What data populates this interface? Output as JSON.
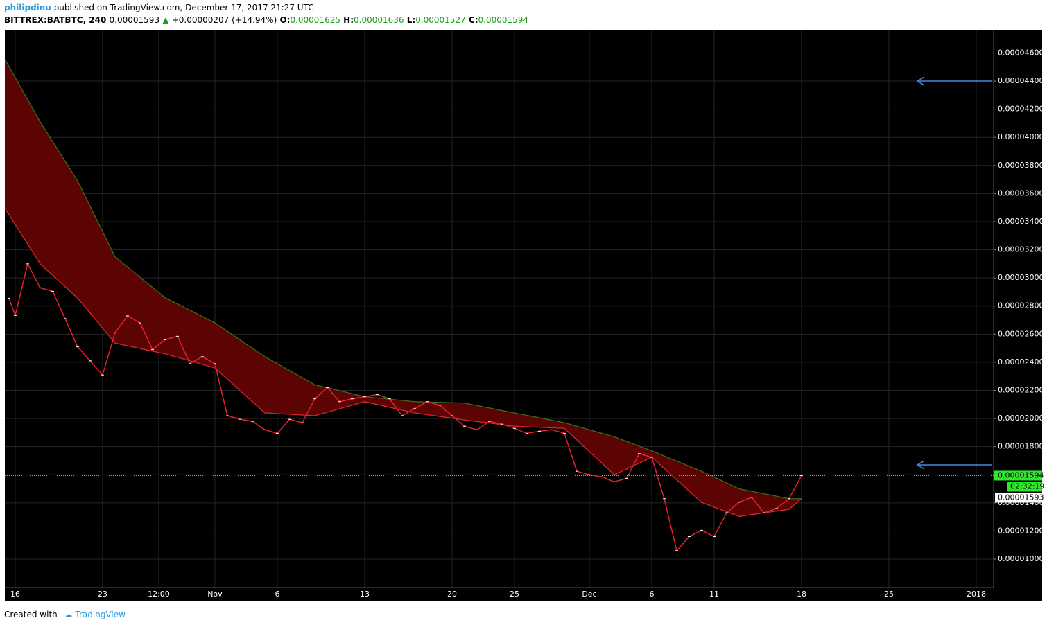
{
  "header": {
    "author": "philipdinu",
    "published": "published on TradingView.com, December 17, 2017 21:27 UTC",
    "symbol": "BITTREX:BATBTC, 240",
    "price": "0.00001593",
    "arrow": "▲",
    "change": "+0.00000207 (+14.94%)",
    "o_label": "O:",
    "o": "0.00001625",
    "h_label": "H:",
    "h": "0.00001636",
    "l_label": "L:",
    "l": "0.00001527",
    "c_label": "C:",
    "c": "0.00001594"
  },
  "footer": {
    "created": "Created with",
    "brand": "TradingView"
  },
  "chart_data": {
    "type": "line",
    "xlim": [
      -0.83,
      78.39
    ],
    "ylim": [
      7.98e-06,
      4.76e-05
    ],
    "xticks": [
      {
        "value": 0,
        "label": "16"
      },
      {
        "value": 7,
        "label": "23"
      },
      {
        "value": 11.5,
        "label": "12:00"
      },
      {
        "value": 16,
        "label": "Nov"
      },
      {
        "value": 21,
        "label": "6"
      },
      {
        "value": 28,
        "label": "13"
      },
      {
        "value": 35,
        "label": "20"
      },
      {
        "value": 40,
        "label": "25"
      },
      {
        "value": 46,
        "label": "Dec"
      },
      {
        "value": 51,
        "label": "6"
      },
      {
        "value": 56,
        "label": "11"
      },
      {
        "value": 63,
        "label": "18"
      },
      {
        "value": 70,
        "label": "25"
      },
      {
        "value": 77,
        "label": "2018"
      }
    ],
    "yticks": [
      {
        "value": 1e-05,
        "label": "0.00001000"
      },
      {
        "value": 1.2e-05,
        "label": "0.00001200"
      },
      {
        "value": 1.4e-05,
        "label": "0.00001400"
      },
      {
        "value": 1.6e-05,
        "label": "0.00001600"
      },
      {
        "value": 1.8e-05,
        "label": "0.00001800"
      },
      {
        "value": 2e-05,
        "label": "0.00002000"
      },
      {
        "value": 2.2e-05,
        "label": "0.00002200"
      },
      {
        "value": 2.4e-05,
        "label": "0.00002400"
      },
      {
        "value": 2.6e-05,
        "label": "0.00002600"
      },
      {
        "value": 2.8e-05,
        "label": "0.00002800"
      },
      {
        "value": 3e-05,
        "label": "0.00003000"
      },
      {
        "value": 3.2e-05,
        "label": "0.00003200"
      },
      {
        "value": 3.4e-05,
        "label": "0.00003400"
      },
      {
        "value": 3.6e-05,
        "label": "0.00003600"
      },
      {
        "value": 3.8e-05,
        "label": "0.00003800"
      },
      {
        "value": 4e-05,
        "label": "0.00004000"
      },
      {
        "value": 4.2e-05,
        "label": "0.00004200"
      },
      {
        "value": 4.4e-05,
        "label": "0.00004400"
      },
      {
        "value": 4.6e-05,
        "label": "0.00004600"
      }
    ],
    "grid": true,
    "band_color": "#5c0404",
    "series": [
      {
        "color": "#e8202c",
        "x": [
          -0.5,
          0,
          1,
          2,
          3,
          4,
          5,
          6,
          7,
          8,
          9,
          10,
          11,
          12,
          13,
          14,
          15,
          16,
          17,
          18,
          19,
          20,
          21,
          22,
          23,
          24,
          25,
          26,
          27,
          28,
          29,
          30,
          31,
          32,
          33,
          34,
          35,
          36,
          37,
          38,
          39,
          40,
          41,
          42,
          43,
          44,
          45,
          46,
          47,
          48,
          49,
          50,
          51,
          52,
          53,
          54,
          55,
          56,
          57,
          58,
          59,
          60,
          61,
          62,
          63
        ],
        "values": [
          2.856e-05,
          2.733e-05,
          3.1e-05,
          2.93e-05,
          2.905e-05,
          2.71e-05,
          2.51e-05,
          2.41e-05,
          2.31e-05,
          2.61e-05,
          2.73e-05,
          2.68e-05,
          2.49e-05,
          2.56e-05,
          2.585e-05,
          2.39e-05,
          2.44e-05,
          2.39e-05,
          2.02e-05,
          1.995e-05,
          1.98e-05,
          1.92e-05,
          1.895e-05,
          1.995e-05,
          1.97e-05,
          2.14e-05,
          2.22e-05,
          2.12e-05,
          2.14e-05,
          2.155e-05,
          2.17e-05,
          2.14e-05,
          2.02e-05,
          2.07e-05,
          2.12e-05,
          2.095e-05,
          2.02e-05,
          1.945e-05,
          1.92e-05,
          1.98e-05,
          1.96e-05,
          1.93e-05,
          1.895e-05,
          1.91e-05,
          1.92e-05,
          1.895e-05,
          1.625e-05,
          1.6e-05,
          1.585e-05,
          1.55e-05,
          1.575e-05,
          1.75e-05,
          1.725e-05,
          1.43e-05,
          1.06e-05,
          1.16e-05,
          1.205e-05,
          1.16e-05,
          1.33e-05,
          1.405e-05,
          1.44e-05,
          1.33e-05,
          1.36e-05,
          1.43e-05,
          1.594e-05
        ]
      },
      {
        "color": "#d8262a",
        "x": [
          -0.83,
          2,
          5,
          8,
          12,
          16,
          20,
          24,
          28,
          32,
          36,
          40,
          44,
          48,
          51,
          55,
          58,
          62,
          63
        ],
        "values": [
          3.497e-05,
          3.1e-05,
          2.856e-05,
          2.536e-05,
          2.46e-05,
          2.36e-05,
          2.04e-05,
          2.02e-05,
          2.12e-05,
          2.04e-05,
          1.99e-05,
          1.945e-05,
          1.93e-05,
          1.6e-05,
          1.725e-05,
          1.403e-05,
          1.304e-05,
          1.354e-05,
          1.43e-05
        ]
      },
      {
        "color": "#3d6b1a",
        "x": [
          -0.83,
          2,
          5,
          8,
          12,
          16,
          20,
          24,
          28,
          32,
          36,
          40,
          44,
          48,
          51,
          55,
          58,
          62,
          63
        ],
        "values": [
          4.556e-05,
          4.11e-05,
          3.69e-05,
          3.15e-05,
          2.86e-05,
          2.68e-05,
          2.44e-05,
          2.24e-05,
          2.155e-05,
          2.12e-05,
          2.11e-05,
          2.04e-05,
          1.97e-05,
          1.87e-05,
          1.77e-05,
          1.625e-05,
          1.5e-05,
          1.43e-05,
          1.43e-05
        ]
      }
    ],
    "last_price": 1.594e-05,
    "last_color": "#2ee62e",
    "price_labels": {
      "last": "0.00001594",
      "countdown": "02:32:19",
      "bid": "0.00001593"
    },
    "arrow_levels": [
      4.4e-05,
      1.67e-05
    ],
    "arrow_color": "#4a86e8"
  }
}
